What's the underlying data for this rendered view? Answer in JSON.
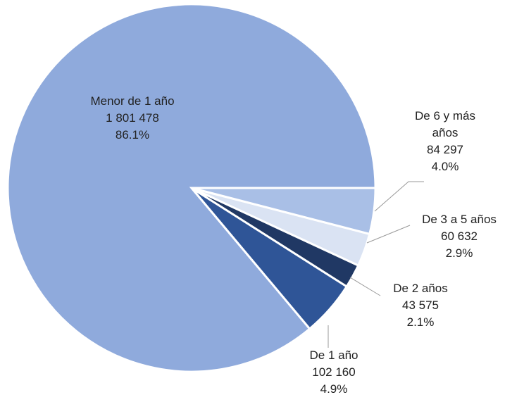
{
  "chart_data": {
    "type": "pie",
    "categories": [
      "Menor de 1 año",
      "De 1 año",
      "De 2 años",
      "De 3 a 5 años",
      "De 6 y más años"
    ],
    "values": [
      1801478,
      102160,
      43575,
      60632,
      84297
    ],
    "value_labels": [
      "1 801 478",
      "102 160",
      "43 575",
      "60 632",
      "84 297"
    ],
    "percents": [
      86.1,
      4.9,
      2.1,
      2.9,
      4.0
    ],
    "percent_labels": [
      "86.1%",
      "4.9%",
      "2.1%",
      "2.9%",
      "4.0%"
    ],
    "colors": [
      "#8faadc",
      "#2f5597",
      "#203864",
      "#dae3f3",
      "#a9bfe6"
    ]
  }
}
